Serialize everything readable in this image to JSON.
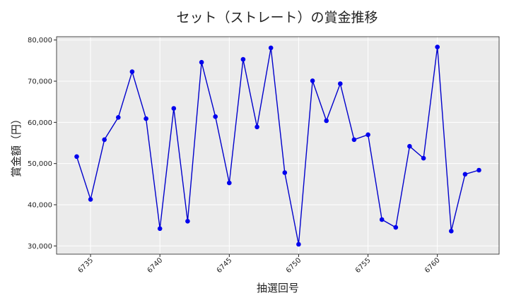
{
  "chart_data": {
    "type": "line",
    "title": "セット（ストレート）の賞金推移",
    "xlabel": "抽選回号",
    "ylabel": "賞金額（円）",
    "x": [
      6734,
      6735,
      6736,
      6737,
      6738,
      6739,
      6740,
      6741,
      6742,
      6743,
      6744,
      6745,
      6746,
      6747,
      6748,
      6749,
      6750,
      6751,
      6752,
      6753,
      6754,
      6755,
      6756,
      6757,
      6758,
      6759,
      6760,
      6761,
      6762,
      6763
    ],
    "series": [
      {
        "values": [
          51700,
          41300,
          55800,
          61200,
          72300,
          60900,
          34200,
          63400,
          36000,
          74600,
          61400,
          45300,
          75300,
          58900,
          78100,
          47800,
          30400,
          70100,
          60400,
          69400,
          55800,
          57000,
          36400,
          34500,
          54200,
          51300,
          78300,
          33600,
          47400,
          48400
        ]
      }
    ],
    "xticks": [
      "6735",
      "6740",
      "6745",
      "6750",
      "6755",
      "6760"
    ],
    "yticks": [
      "30,000",
      "40,000",
      "50,000",
      "60,000",
      "70,000",
      "80,000"
    ],
    "xlim": [
      6732.55,
      6764.45
    ],
    "ylim": [
      28000,
      80800
    ],
    "grid": true,
    "colors": {
      "line": "#0000cc",
      "marker": "#0000ee",
      "plot_bg": "#ebebeb",
      "grid": "#ffffff"
    }
  }
}
